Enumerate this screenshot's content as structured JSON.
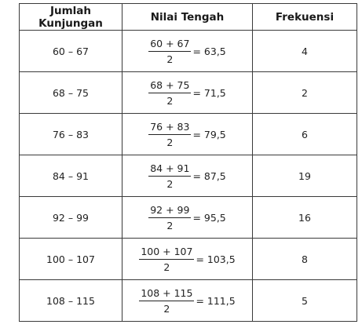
{
  "headers": {
    "visits": "Jumlah Kunjungan",
    "midpoint": "Nilai Tengah",
    "frequency": "Frekuensi"
  },
  "rows": [
    {
      "range": "60 – 67",
      "numerator": "60 + 67",
      "denominator": "2",
      "result": "= 63,5",
      "frequency": "4"
    },
    {
      "range": "68 – 75",
      "numerator": "68 + 75",
      "denominator": "2",
      "result": "= 71,5",
      "frequency": "2"
    },
    {
      "range": "76 – 83",
      "numerator": "76 + 83",
      "denominator": "2",
      "result": "= 79,5",
      "frequency": "6"
    },
    {
      "range": "84 – 91",
      "numerator": "84 + 91",
      "denominator": "2",
      "result": "= 87,5",
      "frequency": "19"
    },
    {
      "range": "92 – 99",
      "numerator": "92 + 99",
      "denominator": "2",
      "result": "= 95,5",
      "frequency": "16"
    },
    {
      "range": "100 – 107",
      "numerator": "100 + 107",
      "denominator": "2",
      "result": "= 103,5",
      "frequency": "8"
    },
    {
      "range": "108 – 115",
      "numerator": "108 + 115",
      "denominator": "2",
      "result": "= 111,5",
      "frequency": "5"
    }
  ]
}
